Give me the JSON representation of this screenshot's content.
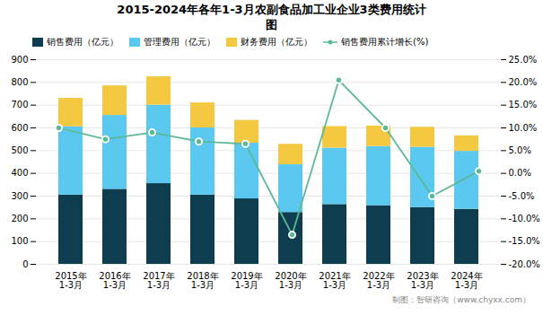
{
  "chart_data": {
    "type": "bar",
    "title": "2015-2024年各年1-3月农副食品加工业企业3类费用统计\n图",
    "categories": [
      "2015年\n1-3月",
      "2016年\n1-3月",
      "2017年\n1-3月",
      "2018年\n1-3月",
      "2019年\n1-3月",
      "2020年\n1-3月",
      "2021年\n1-3月",
      "2022年\n1-3月",
      "2023年\n1-3月",
      "2024年\n1-3月"
    ],
    "stacked": true,
    "series": [
      {
        "name": "销售费用（亿元）",
        "color": "#0d3d4f",
        "type": "bar",
        "values": [
          305,
          330,
          355,
          305,
          288,
          228,
          263,
          258,
          250,
          242
        ]
      },
      {
        "name": "管理费用（亿元）",
        "color": "#5bc8f0",
        "type": "bar",
        "values": [
          300,
          325,
          345,
          295,
          245,
          210,
          248,
          260,
          265,
          255
        ]
      },
      {
        "name": "财务费用（亿元）",
        "color": "#f5c842",
        "type": "bar",
        "values": [
          125,
          130,
          125,
          110,
          100,
          90,
          95,
          90,
          88,
          68
        ]
      },
      {
        "name": "销售费用累计增长(%)",
        "color": "#5cb896",
        "type": "line",
        "marker": "circle",
        "axis": "y2",
        "values": [
          10.0,
          7.5,
          9.0,
          7.0,
          6.5,
          -13.5,
          20.5,
          10.0,
          -5.0,
          0.5
        ]
      }
    ],
    "ylim": [
      0,
      900
    ],
    "yticks": [
      0,
      100,
      200,
      300,
      400,
      500,
      600,
      700,
      800,
      900
    ],
    "y2lim": [
      -20.0,
      25.0
    ],
    "y2ticks": [
      {
        "value": -20.0,
        "label": "-20.0%"
      },
      {
        "value": -15.0,
        "label": "-15.0%"
      },
      {
        "value": -10.0,
        "label": "-10.0%"
      },
      {
        "value": -5.0,
        "label": "-5.0%"
      },
      {
        "value": 0.0,
        "label": "0.0%"
      },
      {
        "value": 5.0,
        "label": "5.0%"
      },
      {
        "value": 10.0,
        "label": "10.0%"
      },
      {
        "value": 15.0,
        "label": "15.0%"
      },
      {
        "value": 20.0,
        "label": "20.0%"
      },
      {
        "value": 25.0,
        "label": "25.0%"
      }
    ],
    "grid": true,
    "legend": "top",
    "annotations": [
      "制图：智研咨询（www.chyxx.com）"
    ]
  }
}
